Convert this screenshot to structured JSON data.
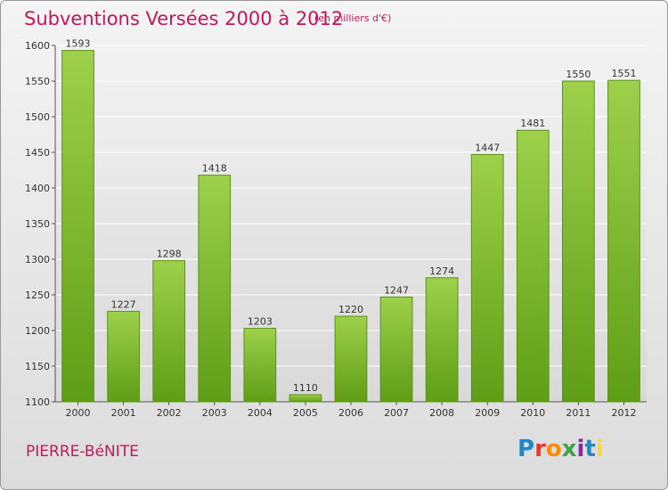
{
  "header": {
    "title": "Subventions Versées 2000 à 2012",
    "subtitle": "(en milliers d'€)"
  },
  "footer": {
    "place": "PIERRE-BéNITE",
    "logo": "Proxiti",
    "logo_colors": [
      "#1e88c8",
      "#e53935",
      "#fb8c00",
      "#43a047",
      "#8e24aa",
      "#1e88c8",
      "#fdd835"
    ]
  },
  "chart_data": {
    "type": "bar",
    "title": "Subventions Versées 2000 à 2012",
    "subtitle": "(en milliers d'€)",
    "categories": [
      "2000",
      "2001",
      "2002",
      "2003",
      "2004",
      "2005",
      "2006",
      "2007",
      "2008",
      "2009",
      "2010",
      "2011",
      "2012"
    ],
    "values": [
      1593,
      1227,
      1298,
      1418,
      1203,
      1110,
      1220,
      1247,
      1274,
      1447,
      1481,
      1550,
      1551
    ],
    "ylim": [
      1100,
      1600
    ],
    "yticks": [
      1100,
      1150,
      1200,
      1250,
      1300,
      1350,
      1400,
      1450,
      1500,
      1550,
      1600
    ],
    "grid": true,
    "bar_color": "#7cbd2c",
    "xlabel": "",
    "ylabel": ""
  }
}
